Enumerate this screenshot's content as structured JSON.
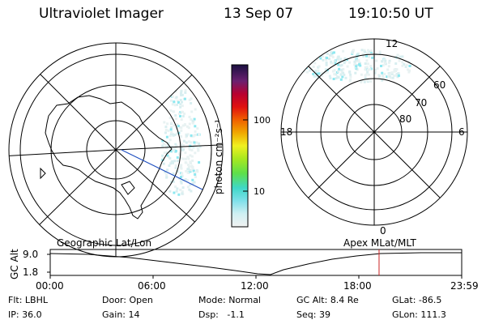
{
  "header": {
    "title": "Ultraviolet Imager",
    "date": "13 Sep 07",
    "time": "19:10:50 UT"
  },
  "colorbar": {
    "unit": "photon cm⁻²s⁻¹",
    "ticks": [
      "100",
      "10"
    ]
  },
  "left_map": {
    "label": "Geographic Lat/Lon"
  },
  "right_map": {
    "label": "Apex  MLat/MLT",
    "mlt_labels": [
      "12",
      "18",
      "6",
      "0"
    ],
    "lat_labels": [
      "60",
      "70",
      "80"
    ]
  },
  "timeline": {
    "ylabel": "GC Alt",
    "yticks": [
      "9.0",
      "1.8"
    ],
    "xticks": [
      "00:00",
      "06:00",
      "12:00",
      "18:00",
      "23:59"
    ],
    "marker_time_hours": 19.18
  },
  "status": {
    "row1": [
      {
        "label": "Flt:",
        "value": "LBHL"
      },
      {
        "label": "Door:",
        "value": "Open"
      },
      {
        "label": "Mode:",
        "value": "Normal"
      },
      {
        "label": "GC Alt:",
        "value": "8.4 Re"
      },
      {
        "label": "GLat:",
        "value": "-86.5"
      }
    ],
    "row2": [
      {
        "label": "IP:",
        "value": "36.0"
      },
      {
        "label": "Gain:",
        "value": "14"
      },
      {
        "label": "Dsp:",
        "value": "  -1.1"
      },
      {
        "label": "Seq:",
        "value": "39"
      },
      {
        "label": "GLon:",
        "value": "111.3"
      }
    ]
  },
  "colors": {
    "marker": "#cc2222",
    "aurora": "#8ee8f0"
  }
}
